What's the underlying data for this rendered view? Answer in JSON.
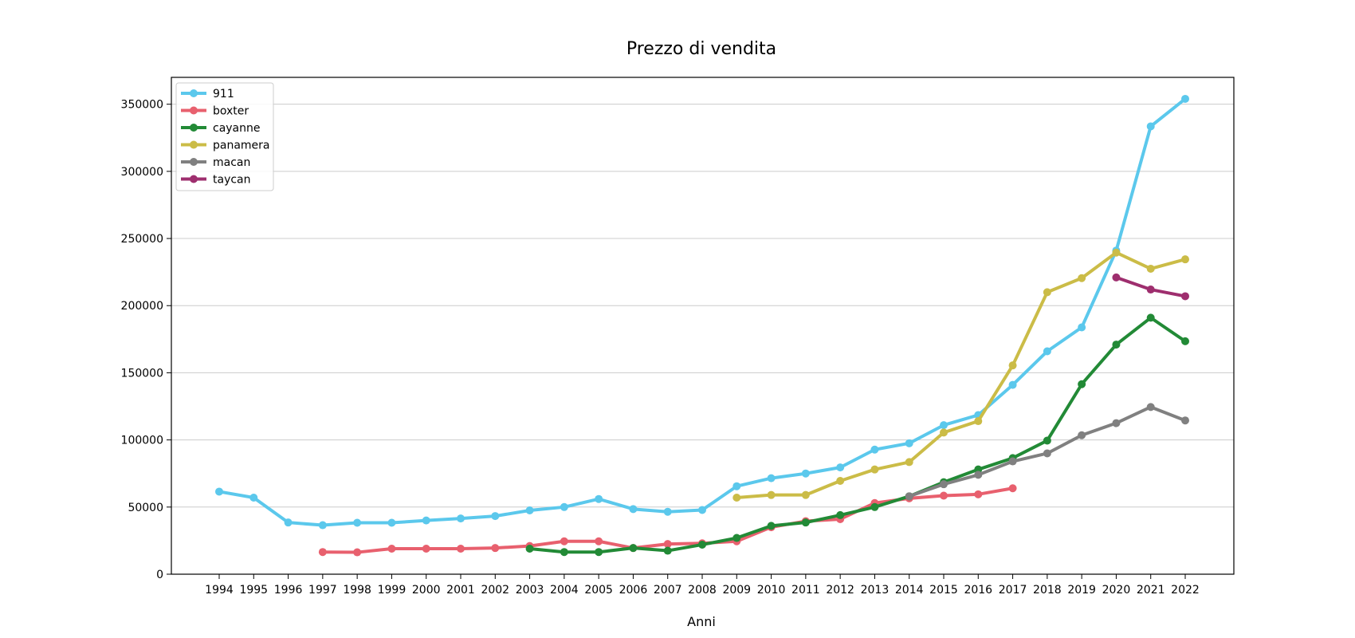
{
  "chart_data": {
    "type": "line",
    "title": "Prezzo di vendita",
    "xlabel": "Anni",
    "ylabel": "",
    "ylim": [
      0,
      370000
    ],
    "yticks": [
      0,
      50000,
      100000,
      150000,
      200000,
      250000,
      300000,
      350000
    ],
    "x": [
      1994,
      1995,
      1996,
      1997,
      1998,
      1999,
      2000,
      2001,
      2002,
      2003,
      2004,
      2005,
      2006,
      2007,
      2008,
      2009,
      2010,
      2011,
      2012,
      2013,
      2014,
      2015,
      2016,
      2017,
      2018,
      2019,
      2020,
      2021,
      2022
    ],
    "grid": "horizontal",
    "legend_position": "top-left",
    "series": [
      {
        "name": "911",
        "color": "#5bc8ec",
        "x": [
          1994,
          1995,
          1996,
          1997,
          1998,
          1999,
          2000,
          2001,
          2002,
          2003,
          2004,
          2005,
          2006,
          2007,
          2008,
          2009,
          2010,
          2011,
          2012,
          2013,
          2014,
          2015,
          2016,
          2017,
          2018,
          2019,
          2020,
          2021,
          2022
        ],
        "values": [
          61500,
          57000,
          38500,
          36500,
          38300,
          38300,
          40000,
          41500,
          43300,
          47500,
          50000,
          56000,
          48500,
          46500,
          47800,
          65500,
          71500,
          75000,
          79500,
          92800,
          97500,
          111000,
          118500,
          141000,
          166000,
          183800,
          241000,
          333500,
          354000
        ]
      },
      {
        "name": "boxter",
        "color": "#e8606e",
        "x": [
          1997,
          1998,
          1999,
          2000,
          2001,
          2002,
          2003,
          2004,
          2005,
          2006,
          2007,
          2008,
          2009,
          2010,
          2011,
          2012,
          2013,
          2014,
          2015,
          2016,
          2017
        ],
        "values": [
          16500,
          16300,
          19000,
          19000,
          19000,
          19500,
          21000,
          24500,
          24500,
          19500,
          22500,
          23000,
          24500,
          35000,
          39500,
          41000,
          53000,
          56500,
          58500,
          59500,
          64000
        ]
      },
      {
        "name": "cayanne",
        "color": "#228a36",
        "x": [
          2003,
          2004,
          2005,
          2006,
          2007,
          2008,
          2009,
          2010,
          2011,
          2012,
          2013,
          2014,
          2015,
          2016,
          2017,
          2018,
          2019,
          2020,
          2021,
          2022
        ],
        "values": [
          19000,
          16500,
          16500,
          19500,
          17500,
          22000,
          27000,
          36000,
          38500,
          44000,
          50000,
          58000,
          68500,
          78000,
          86500,
          99500,
          141500,
          171000,
          191000,
          173500
        ]
      },
      {
        "name": "panamera",
        "color": "#cbbc47",
        "x": [
          2009,
          2010,
          2011,
          2012,
          2013,
          2014,
          2015,
          2016,
          2017,
          2018,
          2019,
          2020,
          2021,
          2022
        ],
        "values": [
          57000,
          59000,
          59000,
          69500,
          78000,
          83500,
          105500,
          114000,
          155500,
          210000,
          220500,
          239500,
          227500,
          234500
        ]
      },
      {
        "name": "macan",
        "color": "#808080",
        "x": [
          2014,
          2015,
          2016,
          2017,
          2018,
          2019,
          2020,
          2021,
          2022
        ],
        "values": [
          58000,
          67000,
          74000,
          84000,
          90000,
          103500,
          112500,
          124500,
          114500
        ]
      },
      {
        "name": "taycan",
        "color": "#9e2e6e",
        "x": [
          2020,
          2021,
          2022
        ],
        "values": [
          221000,
          212000,
          207000
        ]
      }
    ]
  }
}
